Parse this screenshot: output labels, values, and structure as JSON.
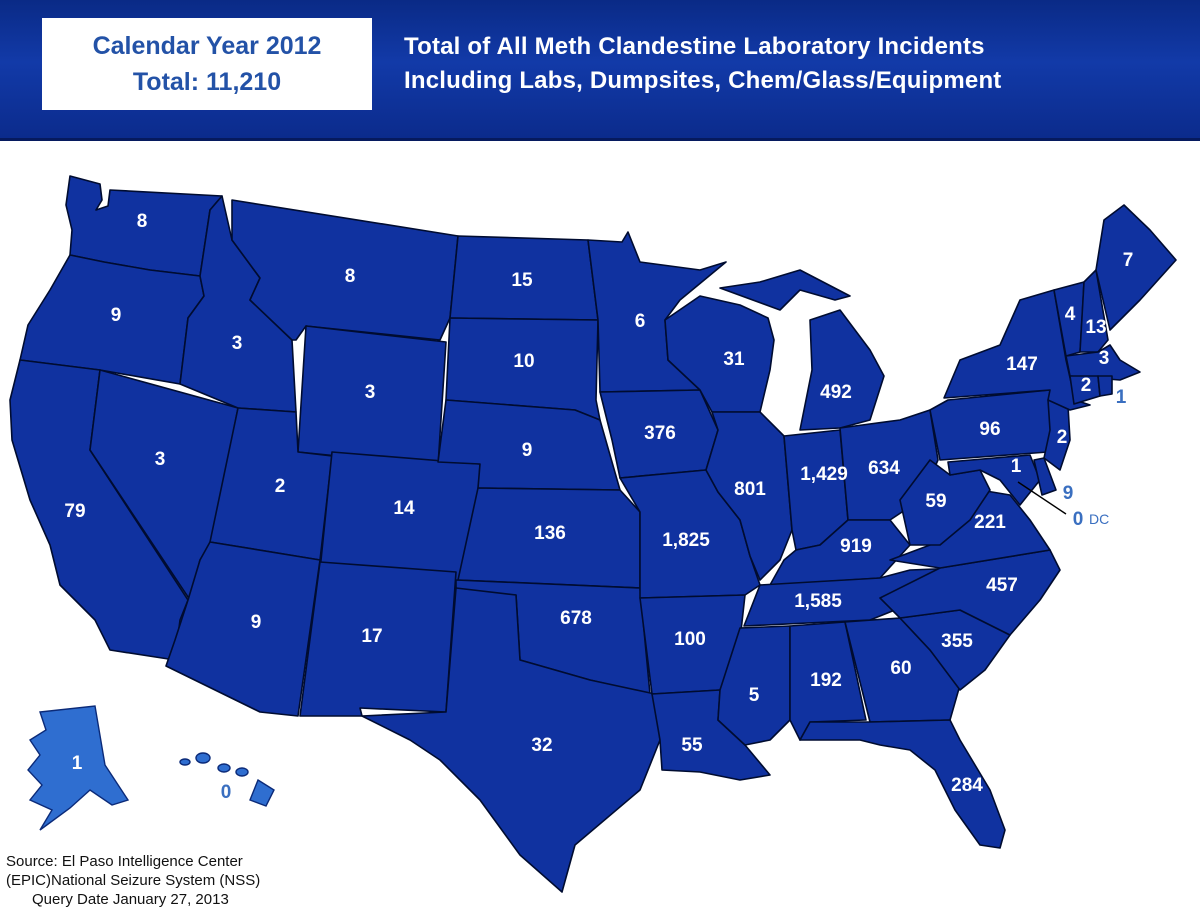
{
  "header": {
    "year_line": "Calendar Year 2012",
    "total_line": "Total: 11,210",
    "title_line1": "Total of All Meth Clandestine Laboratory Incidents",
    "title_line2": "Including Labs, Dumpsites, Chem/Glass/Equipment"
  },
  "colors": {
    "header_bg": "#123aa8",
    "state_fill": "#1032a0",
    "alaska_hawaii_fill": "#2f6ed0",
    "label_text": "#ffffff",
    "outside_label_text": "#3a6fc0"
  },
  "states": {
    "WA": "8",
    "OR": "9",
    "CA": "79",
    "NV": "3",
    "ID": "3",
    "MT": "8",
    "WY": "3",
    "UT": "2",
    "AZ": "9",
    "CO": "14",
    "NM": "17",
    "ND": "15",
    "SD": "10",
    "NE": "9",
    "KS": "136",
    "OK": "678",
    "TX": "32",
    "MN": "6",
    "IA": "376",
    "MO": "1,825",
    "AR": "100",
    "LA": "55",
    "WI": "31",
    "IL": "801",
    "MI": "492",
    "IN": "1,429",
    "OH": "634",
    "KY": "919",
    "TN": "1,585",
    "MS": "5",
    "AL": "192",
    "GA": "60",
    "FL": "284",
    "SC": "355",
    "NC": "457",
    "VA": "221",
    "WV": "59",
    "PA": "96",
    "NY": "147",
    "VT": "4",
    "NH": "13",
    "ME": "7",
    "MA": "3",
    "CT": "2",
    "RI": "1",
    "NJ": "2",
    "DE": "9",
    "MD": "1",
    "DC": "0",
    "DC_label": "DC",
    "AK": "1",
    "HI": "0"
  },
  "source": {
    "line1": "Source: El Paso Intelligence Center",
    "line2": "(EPIC)National Seizure System (NSS)",
    "line3": "Query Date January 27, 2013"
  }
}
